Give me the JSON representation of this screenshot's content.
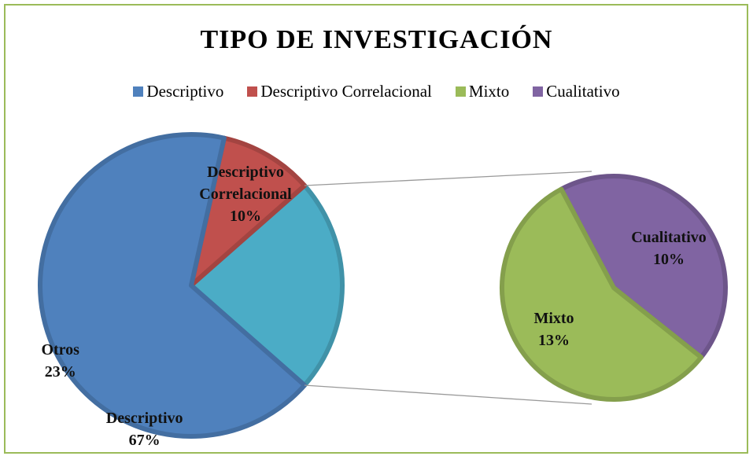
{
  "chart_data": {
    "type": "pie_of_pie",
    "title": "TIPO DE INVESTIGACIÓN",
    "categories": [
      "Descriptivo",
      "Descriptivo Correlacional",
      "Mixto",
      "Cualitativo"
    ],
    "values": [
      67,
      10,
      13,
      10
    ],
    "value_labels": [
      "67%",
      "10%",
      "13%",
      "10%"
    ],
    "colors": [
      "#4f81bd",
      "#c0504d",
      "#9bbb59",
      "#8064a2"
    ],
    "other_label": "Otros",
    "other_value": 23,
    "other_value_label": "23%",
    "other_color": "#4bacc6",
    "legend": "top"
  }
}
